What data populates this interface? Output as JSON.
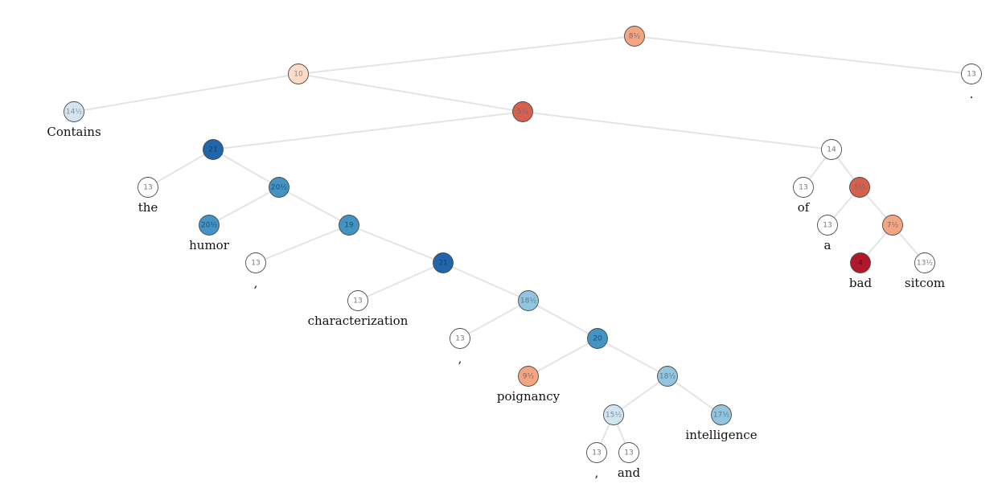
{
  "tree": {
    "nodes": [
      {
        "id": "n-root",
        "score": "8½",
        "color": "#f4a582",
        "text_color": "#6e6e6e",
        "parent": null
      },
      {
        "id": "n-left",
        "score": "10",
        "color": "#fcdbc7",
        "text_color": "#8a8a8a",
        "parent": "n-root"
      },
      {
        "id": "n-period",
        "score": "13",
        "color": "#ffffff",
        "text_color": "#777777",
        "parent": "n-root",
        "word": "."
      },
      {
        "id": "n-contains",
        "score": "14½",
        "color": "#d6e4f0",
        "text_color": "#8a8a8a",
        "parent": "n-left",
        "word": "Contains"
      },
      {
        "id": "n-mid",
        "score": "5½",
        "color": "#d6604d",
        "text_color": "#6e6e6e",
        "parent": "n-left"
      },
      {
        "id": "n-np",
        "score": "21",
        "color": "#2166ac",
        "text_color": "#1a3e66",
        "parent": "n-mid"
      },
      {
        "id": "n-ofabad",
        "score": "14",
        "color": "#ffffff",
        "text_color": "#777777",
        "parent": "n-mid"
      },
      {
        "id": "n-the",
        "score": "13",
        "color": "#ffffff",
        "text_color": "#777777",
        "parent": "n-np",
        "word": "the"
      },
      {
        "id": "n-humorlist",
        "score": "20½",
        "color": "#4393c3",
        "text_color": "#1f4f74",
        "parent": "n-np"
      },
      {
        "id": "n-humor",
        "score": "20½",
        "color": "#4393c3",
        "text_color": "#1f4f74",
        "parent": "n-humorlist",
        "word": "humor"
      },
      {
        "id": "n-rest1",
        "score": "19",
        "color": "#4393c3",
        "text_color": "#1f4f74",
        "parent": "n-humorlist"
      },
      {
        "id": "n-comma1",
        "score": "13",
        "color": "#ffffff",
        "text_color": "#777777",
        "parent": "n-rest1",
        "word": ","
      },
      {
        "id": "n-rest2",
        "score": "21",
        "color": "#2166ac",
        "text_color": "#1a3e66",
        "parent": "n-rest1"
      },
      {
        "id": "n-char",
        "score": "13",
        "color": "#ffffff",
        "text_color": "#777777",
        "parent": "n-rest2",
        "word": "characterization"
      },
      {
        "id": "n-rest3",
        "score": "18½",
        "color": "#92c5de",
        "text_color": "#5a7a90",
        "parent": "n-rest2"
      },
      {
        "id": "n-comma2",
        "score": "13",
        "color": "#ffffff",
        "text_color": "#777777",
        "parent": "n-rest3",
        "word": ","
      },
      {
        "id": "n-rest4",
        "score": "20",
        "color": "#4393c3",
        "text_color": "#1f4f74",
        "parent": "n-rest3"
      },
      {
        "id": "n-poignancy",
        "score": "9½",
        "color": "#f4a582",
        "text_color": "#6e6e6e",
        "parent": "n-rest4",
        "word": "poignancy"
      },
      {
        "id": "n-rest5",
        "score": "18½",
        "color": "#92c5de",
        "text_color": "#5a7a90",
        "parent": "n-rest4"
      },
      {
        "id": "n-commaand",
        "score": "15½",
        "color": "#d1e5f0",
        "text_color": "#7a8a99",
        "parent": "n-rest5"
      },
      {
        "id": "n-intelligence",
        "score": "17½",
        "color": "#92c5de",
        "text_color": "#5a7a90",
        "parent": "n-rest5",
        "word": "intelligence"
      },
      {
        "id": "n-comma3",
        "score": "13",
        "color": "#ffffff",
        "text_color": "#777777",
        "parent": "n-commaand",
        "word": ","
      },
      {
        "id": "n-and",
        "score": "13",
        "color": "#ffffff",
        "text_color": "#777777",
        "parent": "n-commaand",
        "word": "and"
      },
      {
        "id": "n-of",
        "score": "13",
        "color": "#ffffff",
        "text_color": "#777777",
        "parent": "n-ofabad",
        "word": "of"
      },
      {
        "id": "n-abad",
        "score": "5½",
        "color": "#d6604d",
        "text_color": "#6e6e6e",
        "parent": "n-ofabad"
      },
      {
        "id": "n-a",
        "score": "13",
        "color": "#ffffff",
        "text_color": "#777777",
        "parent": "n-abad",
        "word": "a"
      },
      {
        "id": "n-badsitcom",
        "score": "7½",
        "color": "#f4a582",
        "text_color": "#6e6e6e",
        "parent": "n-abad"
      },
      {
        "id": "n-bad",
        "score": "4",
        "color": "#b2182b",
        "text_color": "#5a0d15",
        "parent": "n-badsitcom",
        "word": "bad"
      },
      {
        "id": "n-sitcom",
        "score": "13½",
        "color": "#ffffff",
        "text_color": "#777777",
        "parent": "n-badsitcom",
        "word": "sitcom"
      }
    ]
  }
}
